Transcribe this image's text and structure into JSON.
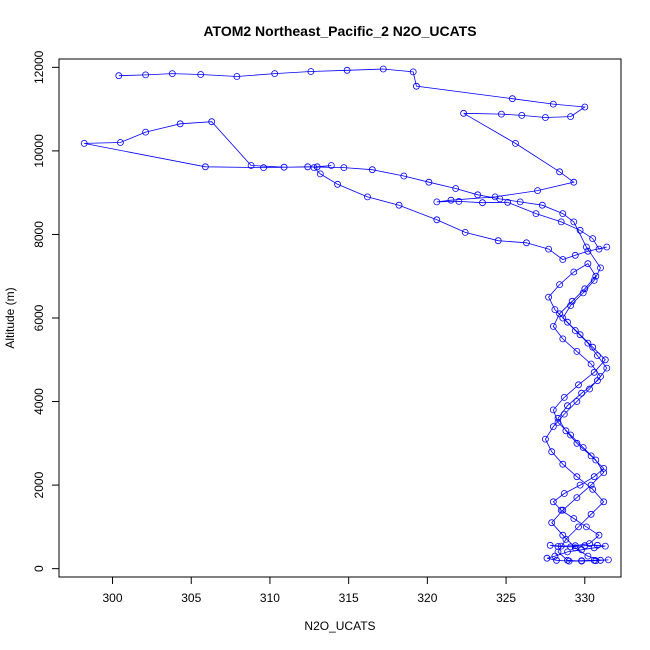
{
  "chart_data": {
    "type": "line",
    "title": "ATOM2 Northeast_Pacific_2 N2O_UCATS",
    "xlabel": "N2O_UCATS",
    "ylabel": "Altitude (m)",
    "xlim": [
      296.6,
      332.3
    ],
    "ylim": [
      -200,
      12200
    ],
    "x_ticks": [
      300,
      305,
      310,
      315,
      320,
      325,
      330
    ],
    "y_ticks": [
      0,
      2000,
      4000,
      6000,
      8000,
      10000,
      12000
    ],
    "line_style": "line-with-open-circles",
    "series_color": "#0000ff",
    "grid": false,
    "legend": "none",
    "series": [
      {
        "x": [
          300.4,
          302.1,
          303.8,
          305.6,
          307.9,
          310.3,
          312.6,
          314.9,
          317.2,
          319.1,
          319.3,
          325.4,
          328.0,
          330.0,
          329.1,
          327.5,
          326.0,
          324.7,
          322.3,
          325.6,
          328.4,
          329.3,
          327.0,
          324.3,
          321.5,
          320.6,
          322.0,
          323.5,
          325.1,
          326.9,
          328.5,
          329.7,
          330.5,
          330.9,
          331.4,
          330.2,
          329.4,
          328.6,
          327.7,
          326.3,
          324.5,
          322.4,
          320.6,
          318.2,
          316.2,
          314.3,
          313.2,
          312.8,
          313.9,
          313.0,
          310.9,
          308.8,
          306.3,
          304.3,
          302.1,
          300.5,
          298.2,
          305.9,
          309.6,
          312.4,
          314.7,
          316.5,
          318.5,
          320.1,
          321.8,
          323.2,
          324.6,
          325.9,
          327.3,
          328.6,
          329.3,
          330.1,
          331.0,
          330.6,
          329.9,
          329.1,
          328.6,
          329.4,
          330.2,
          330.8,
          331.4,
          330.8,
          329.8,
          328.9,
          328.3,
          328.8,
          329.5,
          330.4,
          331.2,
          330.6,
          329.7,
          328.7,
          328.0,
          328.5,
          329.3,
          330.1,
          330.9,
          330.3,
          329.4,
          328.5,
          327.8,
          328.3,
          329.1,
          330.0,
          330.8,
          331.3,
          330.6,
          329.8,
          328.9,
          328.1,
          327.6,
          328.2,
          329.0,
          329.8,
          330.6,
          331.5,
          330.7,
          329.8,
          328.9,
          328.3,
          328.8,
          329.6,
          330.4,
          331.2,
          330.5,
          329.5,
          328.6,
          327.9,
          327.5,
          328.0,
          328.7,
          329.5,
          330.3,
          331.0,
          330.4,
          329.5,
          328.6,
          328.0,
          328.4,
          329.2,
          330.0,
          330.7,
          330.2,
          329.3,
          328.4,
          327.7,
          328.1,
          328.9,
          329.7,
          330.5,
          331.3,
          330.6,
          329.6,
          328.7,
          328.0,
          328.3,
          329.1,
          329.9,
          330.7,
          331.2,
          330.4,
          329.5,
          328.6,
          327.9,
          328.6,
          329.4,
          330.2,
          331.0
        ],
        "y": [
          11800,
          11820,
          11850,
          11830,
          11780,
          11850,
          11900,
          11930,
          11960,
          11890,
          11550,
          11250,
          11120,
          11050,
          10820,
          10800,
          10850,
          10880,
          10900,
          10180,
          9500,
          9250,
          9050,
          8900,
          8820,
          8780,
          8790,
          8760,
          8770,
          8500,
          8300,
          8100,
          7900,
          7650,
          7700,
          7600,
          7500,
          7400,
          7650,
          7800,
          7850,
          8050,
          8350,
          8700,
          8900,
          9200,
          9450,
          9600,
          9650,
          9620,
          9610,
          9650,
          10700,
          10650,
          10450,
          10200,
          10180,
          9620,
          9600,
          9620,
          9600,
          9550,
          9400,
          9250,
          9100,
          8950,
          8850,
          8780,
          8700,
          8500,
          8300,
          7700,
          7200,
          6900,
          6600,
          6300,
          6000,
          5700,
          5400,
          5100,
          4800,
          4500,
          4200,
          3900,
          3600,
          3300,
          3000,
          2700,
          2400,
          2200,
          2000,
          1800,
          1600,
          1400,
          1200,
          1000,
          800,
          600,
          550,
          540,
          560,
          530,
          520,
          550,
          560,
          540,
          500,
          450,
          400,
          300,
          250,
          200,
          180,
          190,
          200,
          210,
          190,
          180,
          200,
          400,
          700,
          1000,
          1300,
          1600,
          1900,
          2200,
          2500,
          2800,
          3100,
          3400,
          3700,
          4000,
          4300,
          4600,
          4900,
          5200,
          5500,
          5800,
          6100,
          6400,
          6700,
          7000,
          7300,
          7100,
          6800,
          6500,
          6200,
          5900,
          5600,
          5300,
          5000,
          4700,
          4400,
          4100,
          3800,
          3500,
          3200,
          2900,
          2600,
          2300,
          2000,
          1700,
          1400,
          1100,
          800,
          500,
          300,
          200
        ]
      }
    ]
  }
}
